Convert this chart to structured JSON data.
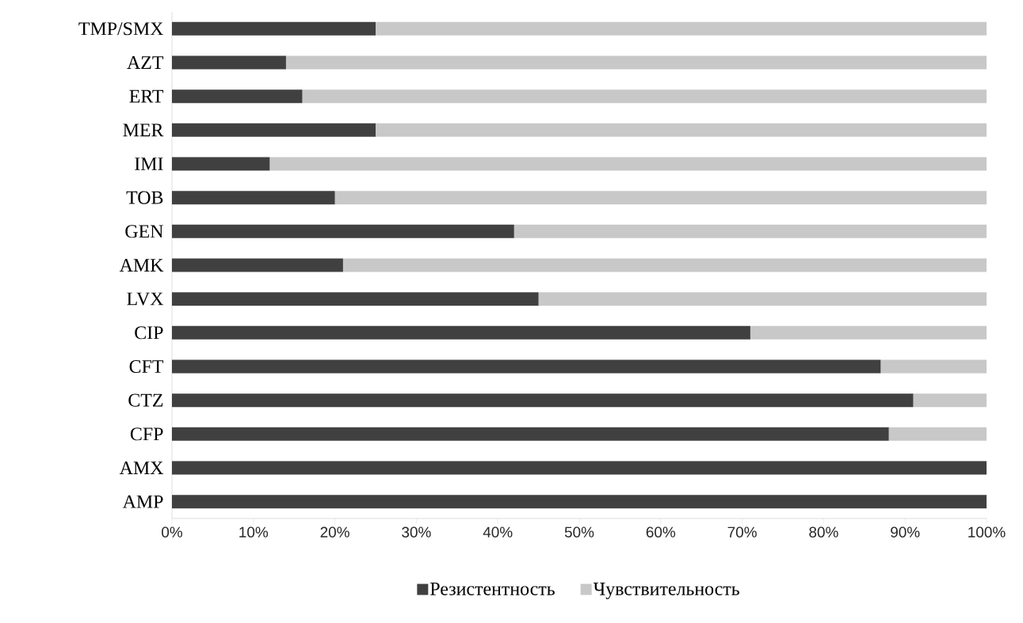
{
  "chart_data": {
    "type": "bar",
    "orientation": "horizontal",
    "stacked": true,
    "legend": "bottom",
    "categories": [
      "TMP/SMX",
      "AZT",
      "ERT",
      "MER",
      "IMI",
      "TOB",
      "GEN",
      "AMK",
      "LVX",
      "CIP",
      "CFT",
      "CTZ",
      "CFP",
      "AMX",
      "AMP"
    ],
    "series": [
      {
        "name": "Резистентность",
        "color": "#404040",
        "values": [
          25,
          14,
          16,
          25,
          12,
          20,
          42,
          21,
          45,
          71,
          87,
          91,
          88,
          100,
          100
        ]
      },
      {
        "name": "Чувствительность",
        "color": "#c8c8c8",
        "values": [
          75,
          86,
          84,
          75,
          88,
          80,
          58,
          79,
          55,
          29,
          13,
          9,
          12,
          0,
          0
        ]
      }
    ],
    "xlim": [
      0,
      100
    ],
    "xticks": [
      {
        "value": 0,
        "label": "0%"
      },
      {
        "value": 10,
        "label": "10%"
      },
      {
        "value": 20,
        "label": "20%"
      },
      {
        "value": 30,
        "label": "30%"
      },
      {
        "value": 40,
        "label": "40%"
      },
      {
        "value": 50,
        "label": "50%"
      },
      {
        "value": 60,
        "label": "60%"
      },
      {
        "value": 70,
        "label": "70%"
      },
      {
        "value": 80,
        "label": "80%"
      },
      {
        "value": 90,
        "label": "90%"
      },
      {
        "value": 100,
        "label": "100%"
      }
    ]
  }
}
